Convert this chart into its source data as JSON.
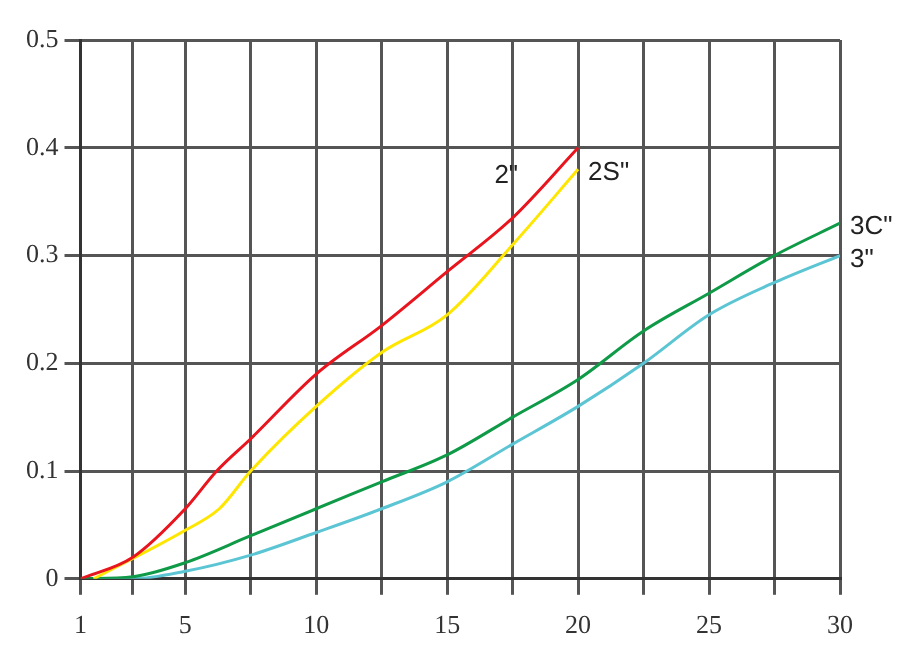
{
  "chart_data": {
    "type": "line",
    "xlim": [
      1,
      30
    ],
    "xticks": [
      1,
      {
        "value": 3,
        "label": null
      },
      5,
      {
        "value": 7.5,
        "label": null
      },
      10,
      {
        "value": 12.5,
        "label": null
      },
      15,
      {
        "value": 17.5,
        "label": null
      },
      20,
      {
        "value": 22.5,
        "label": null
      },
      25,
      {
        "value": 27.5,
        "label": null
      },
      30
    ],
    "ylim": [
      0,
      0.5
    ],
    "yticks": [
      0,
      0.1,
      0.2,
      0.3,
      0.4,
      0.5
    ],
    "grid": true,
    "marker": "none",
    "series": [
      {
        "name": "2\"",
        "color": "#e8141e",
        "x": [
          1,
          3,
          5,
          6.2,
          7.5,
          10,
          12.5,
          15,
          17.5,
          20
        ],
        "values": [
          0,
          0.02,
          0.065,
          0.1,
          0.13,
          0.19,
          0.235,
          0.285,
          0.335,
          0.4
        ]
      },
      {
        "name": "2S\"",
        "color": "#ffe600",
        "x": [
          1.5,
          5,
          6.3,
          7.5,
          10,
          12.5,
          15,
          17.5,
          20
        ],
        "values": [
          0,
          0.045,
          0.065,
          0.1,
          0.16,
          0.21,
          0.245,
          0.31,
          0.38
        ]
      },
      {
        "name": "3C\"",
        "color": "#0f9a48",
        "x": [
          1,
          3,
          5,
          7.5,
          10,
          12.5,
          15,
          17.5,
          20,
          22.5,
          25,
          27.5,
          30
        ],
        "values": [
          0,
          0.002,
          0.015,
          0.04,
          0.065,
          0.09,
          0.115,
          0.15,
          0.185,
          0.23,
          0.265,
          0.3,
          0.33
        ]
      },
      {
        "name": "3\"",
        "color": "#5bc5d4",
        "x": [
          1.5,
          3,
          5,
          7.5,
          10,
          12.5,
          15,
          17.5,
          20,
          22.5,
          25,
          27.5,
          30
        ],
        "values": [
          0,
          0,
          0.007,
          0.022,
          0.043,
          0.065,
          0.09,
          0.125,
          0.16,
          0.2,
          0.245,
          0.275,
          0.3
        ]
      }
    ]
  }
}
